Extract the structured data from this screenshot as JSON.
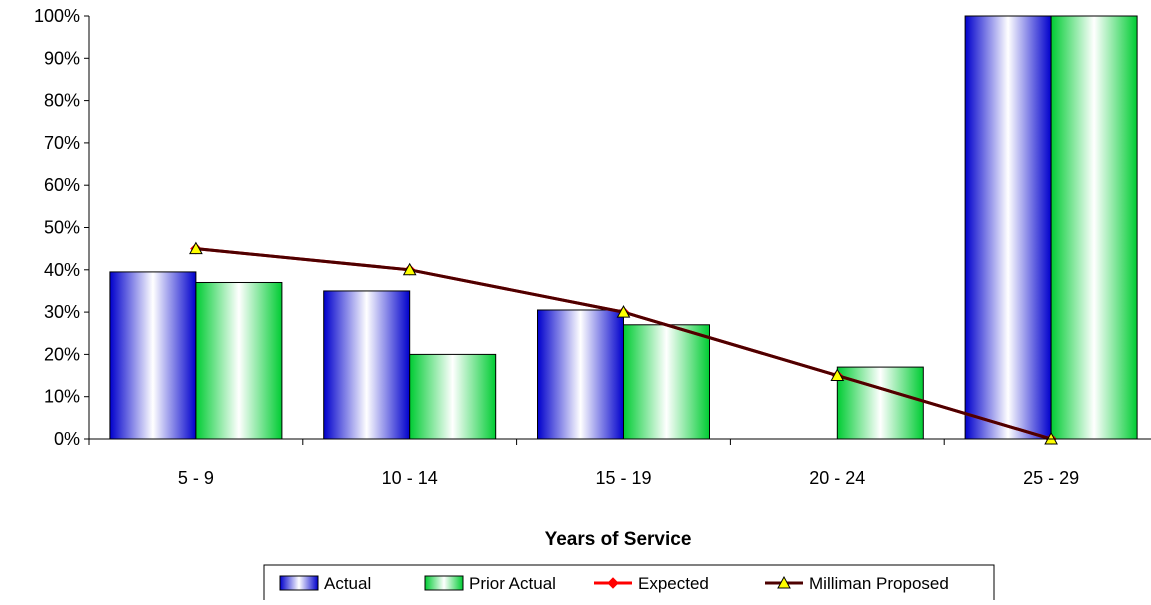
{
  "chart_data": {
    "type": "bar",
    "categories": [
      "5 - 9",
      "10 - 14",
      "15 - 19",
      "20 - 24",
      "25 - 29"
    ],
    "series": [
      {
        "name": "Actual",
        "kind": "bar",
        "values": [
          39.5,
          35,
          30.5,
          null,
          100
        ],
        "color": "#0000cc"
      },
      {
        "name": "Prior Actual",
        "kind": "bar",
        "values": [
          37,
          20,
          27,
          17,
          100
        ],
        "color": "#00cc33"
      },
      {
        "name": "Expected",
        "kind": "line",
        "values": [
          45,
          40,
          30,
          15,
          0
        ],
        "color": "#ff0000",
        "marker": "diamond"
      },
      {
        "name": "Milliman Proposed",
        "kind": "line",
        "values": [
          45,
          40,
          30,
          15,
          0
        ],
        "color": "#4d0000",
        "marker": "triangle",
        "marker_color": "#ffff00"
      }
    ],
    "xlabel": "Years of Service",
    "ylim": [
      0,
      100
    ],
    "yticks": [
      "0%",
      "10%",
      "20%",
      "30%",
      "40%",
      "50%",
      "60%",
      "70%",
      "80%",
      "90%",
      "100%"
    ],
    "grid": false,
    "legend": "bottom-center"
  }
}
